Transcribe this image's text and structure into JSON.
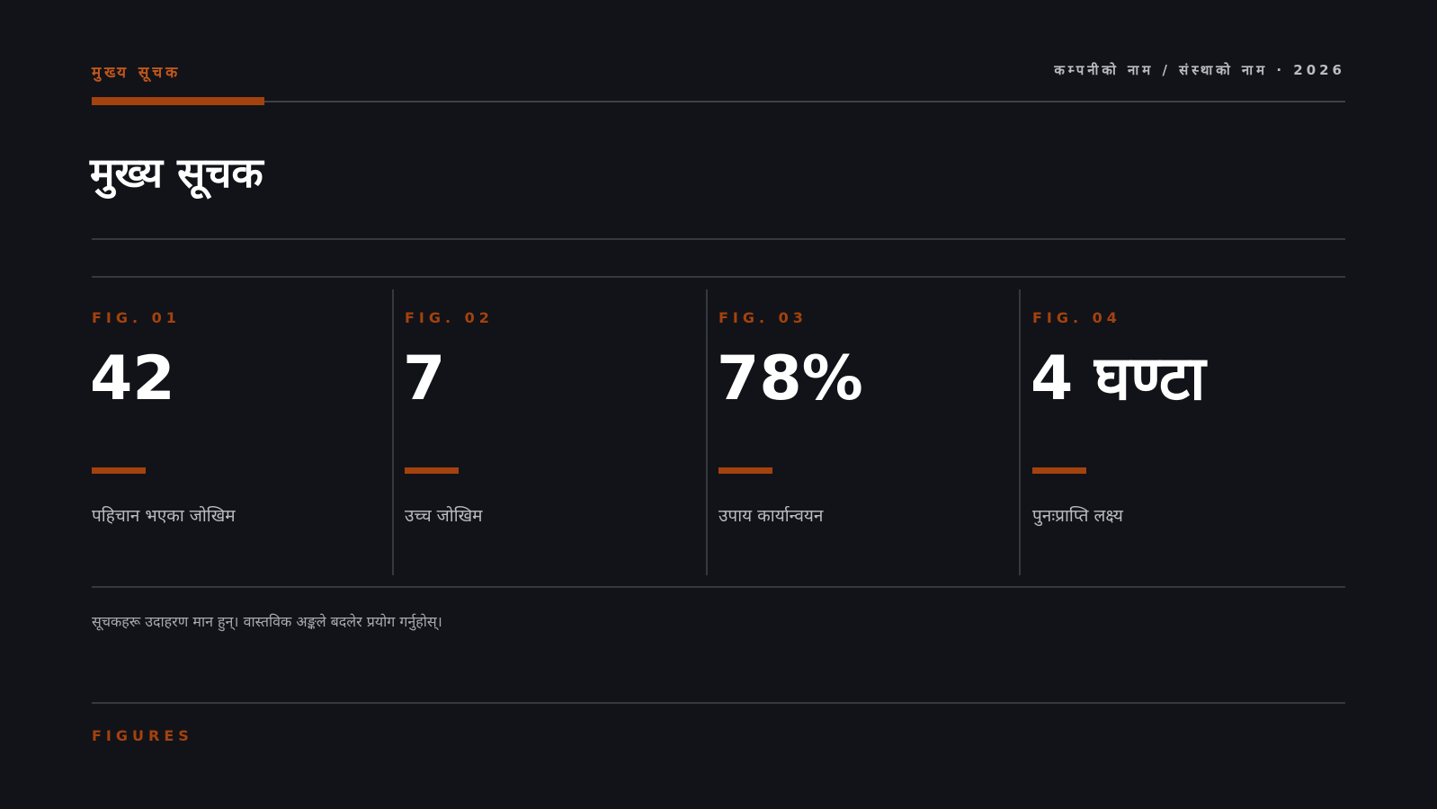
{
  "header": {
    "kicker": "मुख्य सूचक",
    "meta": "कम्पनीको नाम / संस्थाको नाम · 2026",
    "accent_color": "#a4420e"
  },
  "title": "मुख्य सूचक",
  "figures": [
    {
      "label": "FIG. 01",
      "value": "42",
      "caption": "पहिचान भएका जोखिम"
    },
    {
      "label": "FIG. 02",
      "value": "7",
      "caption": "उच्च जोखिम"
    },
    {
      "label": "FIG. 03",
      "value": "78%",
      "caption": "उपाय कार्यान्वयन"
    },
    {
      "label": "FIG. 04",
      "value": "4 घण्टा",
      "caption": "पुनःप्राप्ति लक्ष्य"
    }
  ],
  "note": "सूचकहरू उदाहरण मान हुन्। वास्तविक अङ्कले बदलेर प्रयोग गर्नुहोस्।",
  "footer": {
    "label": "FIGURES"
  },
  "colors": {
    "background": "#121318",
    "text": "#ffffff",
    "muted": "#b9bcc4",
    "rule": "#35383f"
  }
}
